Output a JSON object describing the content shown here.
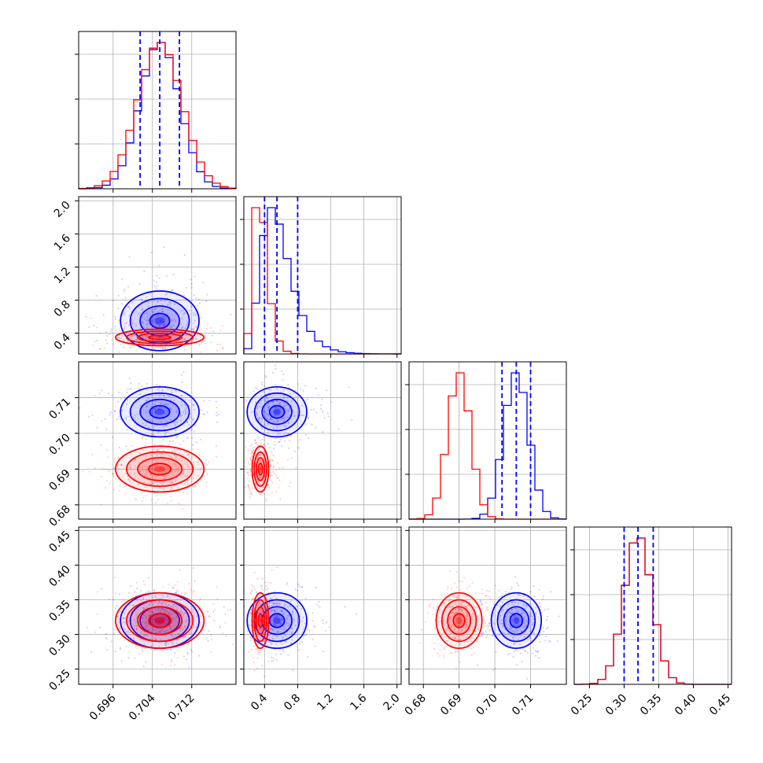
{
  "chart_data": {
    "type": "corner",
    "grid": true,
    "colors": {
      "blue": "#0000ff",
      "red": "#ff0000"
    },
    "series": [
      {
        "color": "#0000ff",
        "params": {
          "a": 0.7055,
          "b": 0.55,
          "c": 0.706,
          "d": 0.32
        },
        "sd": {
          "a": 0.004,
          "b": 0.18,
          "c": 0.0035,
          "d": 0.02
        },
        "quantiles_shown": true
      },
      {
        "color": "#ff0000",
        "params": {
          "a": 0.7055,
          "b": 0.35,
          "c": 0.69,
          "d": 0.32
        },
        "sd": {
          "a": 0.0045,
          "b": 0.05,
          "c": 0.0032,
          "d": 0.02
        },
        "quantiles_shown": false
      }
    ],
    "quantile_lines": {
      "a": [
        0.7015,
        0.7055,
        0.7095
      ],
      "b": [
        0.4,
        0.55,
        0.8
      ],
      "c": [
        0.702,
        0.706,
        0.71
      ],
      "d": [
        0.3,
        0.32,
        0.342
      ]
    },
    "axes": {
      "a": {
        "lim": [
          0.689,
          0.721
        ],
        "ticks": [
          "0.696",
          "0.704",
          "0.712"
        ],
        "values": [
          0.696,
          0.704,
          0.712
        ]
      },
      "b": {
        "lim": [
          0.15,
          2.05
        ],
        "ticks": [
          "0.4",
          "0.8",
          "1.2",
          "1.6",
          "2.0"
        ],
        "values": [
          0.4,
          0.8,
          1.2,
          1.6,
          2.0
        ]
      },
      "c": {
        "lim": [
          0.676,
          0.72
        ],
        "ticks": [
          "0.68",
          "0.69",
          "0.70",
          "0.71"
        ],
        "values": [
          0.68,
          0.69,
          0.7,
          0.71
        ]
      },
      "d": {
        "lim": [
          0.228,
          0.455
        ],
        "ticks": [
          "0.25",
          "0.30",
          "0.35",
          "0.40",
          "0.45"
        ],
        "values": [
          0.25,
          0.3,
          0.35,
          0.4,
          0.45
        ]
      }
    }
  }
}
